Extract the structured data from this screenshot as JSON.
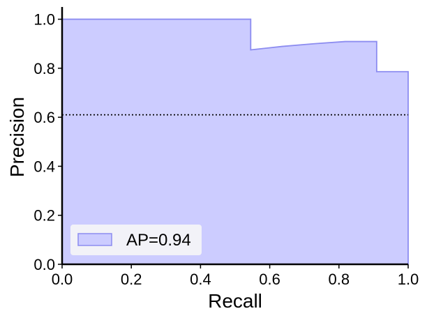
{
  "chart_data": {
    "type": "area",
    "title": "",
    "xlabel": "Recall",
    "ylabel": "Precision",
    "xlim": [
      0.0,
      1.0
    ],
    "ylim": [
      0.0,
      1.05
    ],
    "xticks": [
      "0.0",
      "0.2",
      "0.4",
      "0.6",
      "0.8",
      "1.0"
    ],
    "yticks": [
      "0.0",
      "0.2",
      "0.4",
      "0.6",
      "0.8",
      "1.0"
    ],
    "grid": false,
    "legend_position": "lower-left",
    "series": [
      {
        "name": "AP=0.94",
        "style": "step-filled",
        "recall": [
          0.0,
          0.545,
          0.545,
          0.636,
          0.727,
          0.818,
          0.909,
          0.909,
          1.0
        ],
        "precision": [
          1.0,
          1.0,
          0.875,
          0.889,
          0.9,
          0.909,
          0.909,
          0.786,
          0.786
        ],
        "fill_color": "#ccccff",
        "line_color": "#8c8cf0"
      }
    ],
    "baseline": {
      "value": 0.61,
      "style": "dotted",
      "color": "#000000"
    },
    "legend": [
      {
        "label": "AP=0.94"
      }
    ]
  }
}
